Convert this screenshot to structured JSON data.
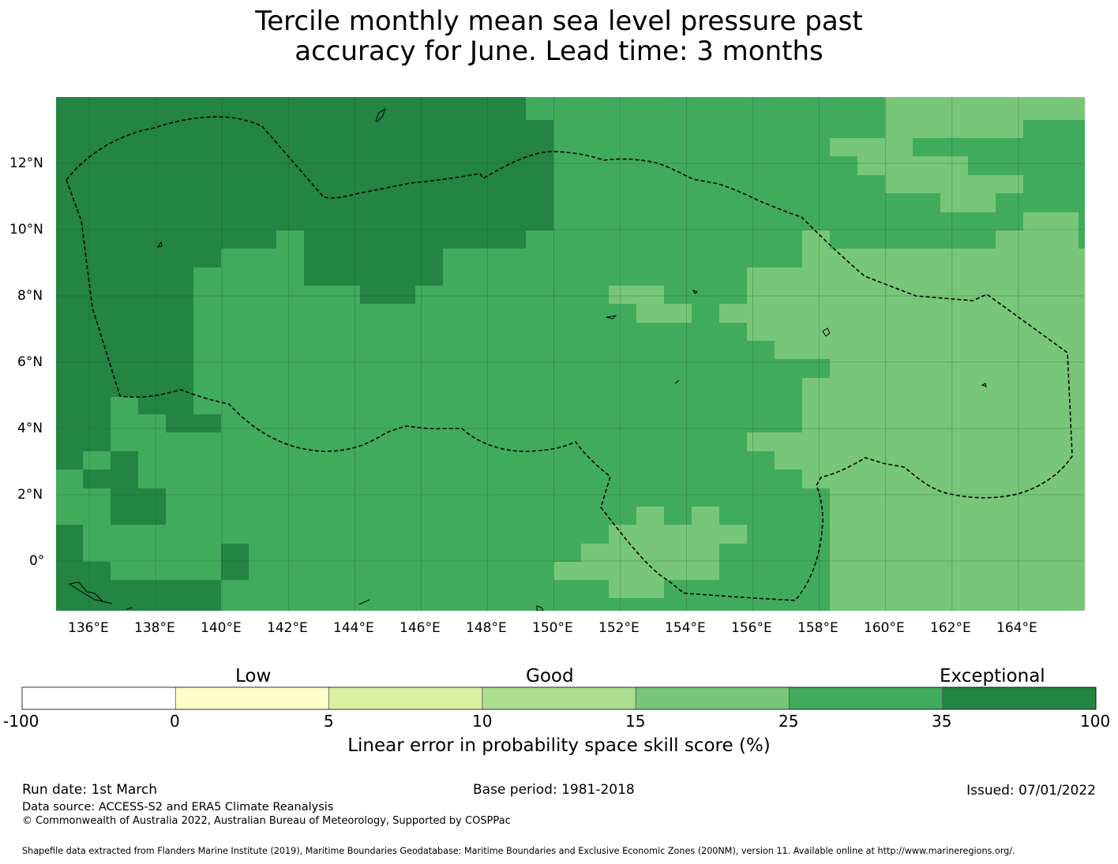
{
  "title": {
    "line1": "Tercile monthly mean sea level pressure past",
    "line2": "accuracy for June. Lead time: 3 months"
  },
  "map": {
    "lon_range": [
      135,
      166
    ],
    "lat_range": [
      -1.5,
      14
    ],
    "lon_ticks": [
      "136°E",
      "138°E",
      "140°E",
      "142°E",
      "144°E",
      "146°E",
      "148°E",
      "150°E",
      "152°E",
      "154°E",
      "156°E",
      "158°E",
      "160°E",
      "162°E",
      "164°E"
    ],
    "lat_ticks": [
      "12°N",
      "10°N",
      "8°N",
      "6°N",
      "4°N",
      "2°N",
      "0°"
    ],
    "regions": {
      "exceptional_nw": "35-100",
      "good_center": "25-35",
      "good_east": "15-25"
    }
  },
  "legend": {
    "categories": [
      "Low",
      "Good",
      "Exceptional"
    ],
    "ticks": [
      "-100",
      "0",
      "5",
      "10",
      "15",
      "25",
      "35",
      "100"
    ],
    "colors": [
      "#ffffff",
      "#ffffcc",
      "#d9f0a3",
      "#addd8e",
      "#78c679",
      "#41ab5d",
      "#238443"
    ],
    "label": "Linear error in probability space skill score (%)"
  },
  "footer": {
    "run_date": "Run date: 1st March",
    "base_period": "Base period: 1981-2018",
    "issued": "Issued: 07/01/2022",
    "data_source": "Data source: ACCESS-S2 and ERA5 Climate Reanalysis",
    "copyright": "© Commonwealth of Australia 2022, Australian Bureau of Meteorology, Supported by COSPPac",
    "shapefile": "Shapefile data extracted from Flanders Marine Institute (2019), Maritime Boundaries Geodatabase: Maritime Boundaries and Exclusive Economic Zones (200NM), version 11. Available online at http://www.marineregions.org/."
  }
}
